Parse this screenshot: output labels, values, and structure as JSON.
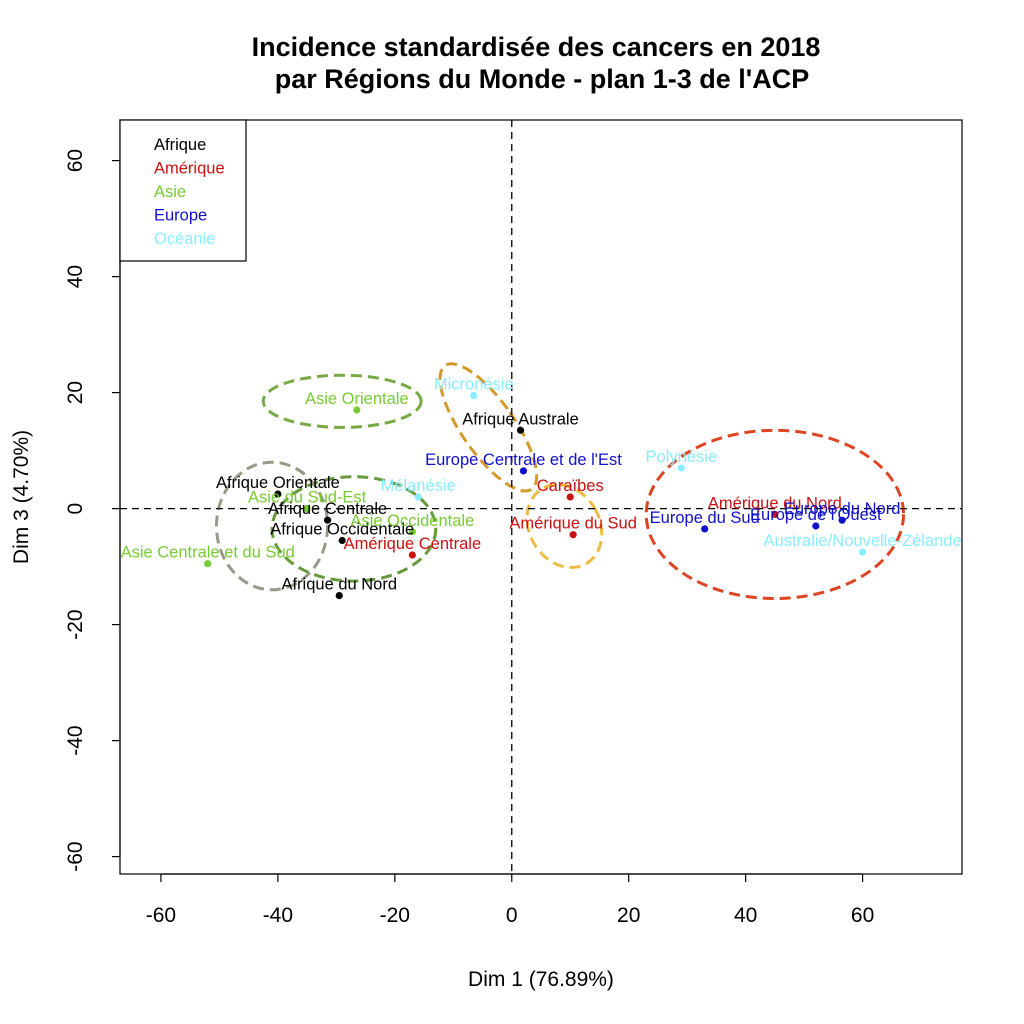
{
  "chart_data": {
    "type": "scatter",
    "title_line1": "Incidence standardisée des cancers en 2018",
    "title_line2": "par Régions du Monde - plan 1-3 de l'ACP",
    "xlabel": "Dim 1 (76.89%)",
    "ylabel": "Dim 3 (4.70%)",
    "xlim": [
      -67,
      77
    ],
    "ylim": [
      -63,
      67
    ],
    "x_ticks": [
      -60,
      -40,
      -20,
      0,
      20,
      40,
      60
    ],
    "y_ticks": [
      -60,
      -40,
      -20,
      0,
      20,
      40,
      60
    ],
    "reference_lines": {
      "x": 0,
      "y": 0,
      "style": "dashed"
    },
    "grid": false,
    "legend_position": "top-left",
    "groups": [
      {
        "name": "Afrique",
        "color": "#000000"
      },
      {
        "name": "Amérique",
        "color": "#cc1111"
      },
      {
        "name": "Asie",
        "color": "#77cc33"
      },
      {
        "name": "Europe",
        "color": "#1111cc"
      },
      {
        "name": "Océanie",
        "color": "#88eeff"
      }
    ],
    "points": [
      {
        "label": "Afrique Australe",
        "group": "Afrique",
        "x": 1.5,
        "y": 13.5
      },
      {
        "label": "Afrique Orientale",
        "group": "Afrique",
        "x": -40,
        "y": 2.5
      },
      {
        "label": "Afrique Centrale",
        "group": "Afrique",
        "x": -31.5,
        "y": -2
      },
      {
        "label": "Afrique Occidentale",
        "group": "Afrique",
        "x": -29,
        "y": -5.5
      },
      {
        "label": "Afrique du Nord",
        "group": "Afrique",
        "x": -29.5,
        "y": -15
      },
      {
        "label": "Caraïbes",
        "group": "Amérique",
        "x": 10,
        "y": 2
      },
      {
        "label": "Amérique du Sud",
        "group": "Amérique",
        "x": 10.5,
        "y": -4.5
      },
      {
        "label": "Amérique Centrale",
        "group": "Amérique",
        "x": -17,
        "y": -8
      },
      {
        "label": "Amérique du Nord",
        "group": "Amérique",
        "x": 45,
        "y": -1
      },
      {
        "label": "Asie Orientale",
        "group": "Asie",
        "x": -26.5,
        "y": 17
      },
      {
        "label": "Asie du Sud-Est",
        "group": "Asie",
        "x": -35,
        "y": 0
      },
      {
        "label": "Asie Occidentale",
        "group": "Asie",
        "x": -17,
        "y": -4
      },
      {
        "label": "Asie Centrale et du Sud",
        "group": "Asie",
        "x": -52,
        "y": -9.5
      },
      {
        "label": "Europe Centrale et de l'Est",
        "group": "Europe",
        "x": 2,
        "y": 6.5
      },
      {
        "label": "Europe du Sud",
        "group": "Europe",
        "x": 33,
        "y": -3.5
      },
      {
        "label": "Europe du Nord",
        "group": "Europe",
        "x": 56.5,
        "y": -2
      },
      {
        "label": "Europe de l'Ouest",
        "group": "Europe",
        "x": 52,
        "y": -3
      },
      {
        "label": "Micronésie",
        "group": "Océanie",
        "x": -6.5,
        "y": 19.5
      },
      {
        "label": "Polynésie",
        "group": "Océanie",
        "x": 29,
        "y": 7
      },
      {
        "label": "Mélanésie",
        "group": "Océanie",
        "x": -16,
        "y": 2
      },
      {
        "label": "Australie/Nouvelle-Zélande",
        "group": "Océanie",
        "x": 60,
        "y": -7.5
      }
    ],
    "ellipses": [
      {
        "group": "Asie",
        "color": "#77aa44",
        "cx": -29,
        "cy": 18.5,
        "rx": 13.5,
        "ry": 4.5,
        "rotation": 0
      },
      {
        "group": "Asie",
        "color": "#66993a",
        "cx": -27,
        "cy": -3.5,
        "rx": 14,
        "ry": 9,
        "rotation": 0
      },
      {
        "group": "Afrique",
        "color": "#999988",
        "cx": -41,
        "cy": -3,
        "rx": 9.5,
        "ry": 11,
        "rotation": 0
      },
      {
        "group": "Amérique",
        "color": "#dd4422",
        "cx": 45,
        "cy": -1,
        "rx": 22,
        "ry": 14.5,
        "rotation": 0
      },
      {
        "group": "Océanie",
        "color": "#d49a2a",
        "cx": -4,
        "cy": 14,
        "rx": 4.5,
        "ry": 13,
        "rotation": -35
      },
      {
        "group": "Amérique",
        "color": "#eebb44",
        "cx": 9,
        "cy": -3,
        "rx": 6,
        "ry": 7.5,
        "rotation": -30
      }
    ]
  }
}
